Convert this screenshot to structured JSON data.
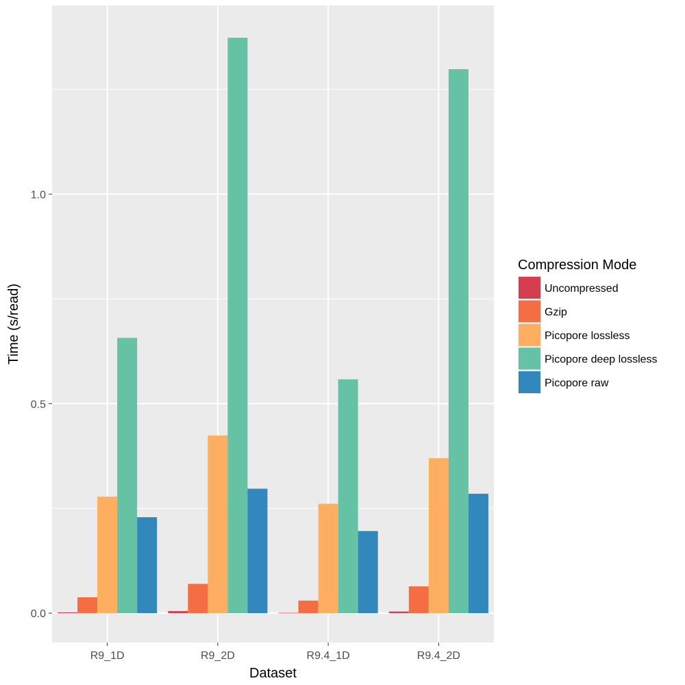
{
  "chart_data": {
    "type": "bar",
    "categories": [
      "R9_1D",
      "R9_2D",
      "R9.4_1D",
      "R9.4_2D"
    ],
    "series": [
      {
        "name": "Uncompressed",
        "color": "#d53e4f",
        "values": [
          0.002,
          0.005,
          0.001,
          0.004
        ]
      },
      {
        "name": "Gzip",
        "color": "#f46d43",
        "values": [
          0.038,
          0.07,
          0.03,
          0.064
        ]
      },
      {
        "name": "Picopore lossless",
        "color": "#fdae61",
        "values": [
          0.278,
          0.424,
          0.261,
          0.37
        ]
      },
      {
        "name": "Picopore deep lossless",
        "color": "#66c2a5",
        "values": [
          0.657,
          1.373,
          0.558,
          1.298
        ]
      },
      {
        "name": "Picopore raw",
        "color": "#3288bd",
        "values": [
          0.229,
          0.297,
          0.196,
          0.285
        ]
      }
    ],
    "xlabel": "Dataset",
    "ylabel": "Time (s/read)",
    "ylim": [
      -0.07,
      1.45
    ],
    "yticks": [
      0.0,
      0.5,
      1.0
    ],
    "ytick_labels": [
      "0.0",
      "0.5",
      "1.0"
    ],
    "legend": {
      "title": "Compression Mode",
      "position": "right"
    },
    "grid": true
  }
}
